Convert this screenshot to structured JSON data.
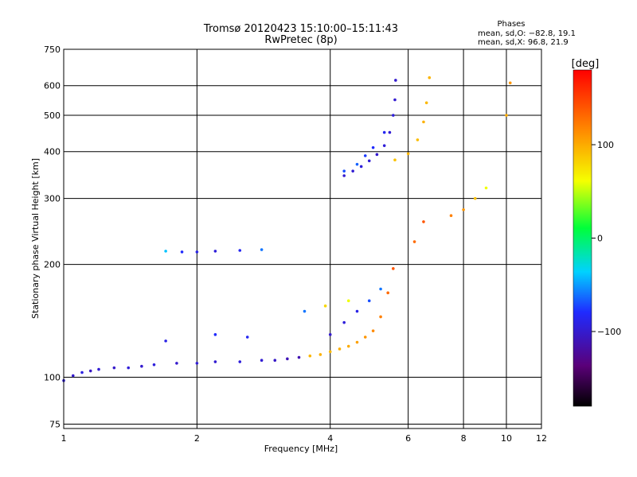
{
  "chart_data": {
    "type": "scatter",
    "title": "Tromsø 20120423 15:10:00–15:11:43",
    "subtitle": "RwPretec (8p)",
    "phase_summary": {
      "title": "Phases",
      "line_o": "mean, sd,O: −82.8, 19.1",
      "line_x": "mean, sd,X:  96.8, 21.9"
    },
    "xlabel": "Frequency [MHz]",
    "ylabel": "Stationary phase Virtual Height [km]",
    "x_scale": "log",
    "y_scale": "log",
    "xlim": [
      1,
      12
    ],
    "ylim": [
      73,
      750
    ],
    "x_ticks": [
      1,
      2,
      4,
      6,
      8,
      10,
      12
    ],
    "x_tick_labels": [
      "1",
      "2",
      "4",
      "6",
      "8",
      "10",
      "12"
    ],
    "y_ticks": [
      75,
      100,
      200,
      300,
      400,
      500,
      600,
      750
    ],
    "y_tick_labels": [
      "75",
      "100",
      "200",
      "300",
      "400",
      "500",
      "600",
      "750"
    ],
    "grid": true,
    "colorbar": {
      "label": "[deg]",
      "min": -180,
      "max": 180,
      "ticks": [
        100,
        0,
        -100
      ],
      "tick_labels": [
        "100",
        "0",
        "−100"
      ],
      "colormap": "rainbow (black → purple → blue → cyan → green → yellow → orange → red)"
    },
    "series": [
      {
        "points": [
          {
            "x": 1.0,
            "y": 98,
            "phase": -95
          },
          {
            "x": 1.05,
            "y": 101,
            "phase": -100
          },
          {
            "x": 1.1,
            "y": 103,
            "phase": -92
          },
          {
            "x": 1.15,
            "y": 104,
            "phase": -105
          },
          {
            "x": 1.2,
            "y": 105,
            "phase": -98
          },
          {
            "x": 1.3,
            "y": 106,
            "phase": -102
          },
          {
            "x": 1.4,
            "y": 106,
            "phase": -96
          },
          {
            "x": 1.5,
            "y": 107,
            "phase": -100
          },
          {
            "x": 1.6,
            "y": 108,
            "phase": -94
          },
          {
            "x": 1.8,
            "y": 109,
            "phase": -101
          },
          {
            "x": 2.0,
            "y": 109,
            "phase": -97
          },
          {
            "x": 2.2,
            "y": 110,
            "phase": -99
          },
          {
            "x": 2.5,
            "y": 110,
            "phase": -95
          },
          {
            "x": 2.8,
            "y": 111,
            "phase": -98
          },
          {
            "x": 3.0,
            "y": 111,
            "phase": -103
          },
          {
            "x": 3.2,
            "y": 112,
            "phase": -110
          },
          {
            "x": 3.4,
            "y": 113,
            "phase": -112
          },
          {
            "x": 3.6,
            "y": 114,
            "phase": 95
          },
          {
            "x": 3.8,
            "y": 115,
            "phase": 97
          },
          {
            "x": 4.0,
            "y": 117,
            "phase": 93
          },
          {
            "x": 4.2,
            "y": 119,
            "phase": 98
          },
          {
            "x": 4.4,
            "y": 121,
            "phase": 100
          },
          {
            "x": 4.6,
            "y": 124,
            "phase": 105
          },
          {
            "x": 4.8,
            "y": 128,
            "phase": 110
          },
          {
            "x": 5.0,
            "y": 133,
            "phase": 115
          },
          {
            "x": 5.2,
            "y": 145,
            "phase": 120
          },
          {
            "x": 5.4,
            "y": 168,
            "phase": 130
          },
          {
            "x": 5.55,
            "y": 195,
            "phase": 140
          },
          {
            "x": 4.0,
            "y": 130,
            "phase": -100
          },
          {
            "x": 4.3,
            "y": 140,
            "phase": -95
          },
          {
            "x": 4.6,
            "y": 150,
            "phase": -90
          },
          {
            "x": 4.9,
            "y": 160,
            "phase": -70
          },
          {
            "x": 5.2,
            "y": 172,
            "phase": -60
          },
          {
            "x": 3.9,
            "y": 155,
            "phase": 80
          },
          {
            "x": 4.4,
            "y": 160,
            "phase": 60
          },
          {
            "x": 1.7,
            "y": 125,
            "phase": -90
          },
          {
            "x": 2.2,
            "y": 130,
            "phase": -80
          },
          {
            "x": 2.6,
            "y": 128,
            "phase": -85
          },
          {
            "x": 3.5,
            "y": 150,
            "phase": -60
          },
          {
            "x": 1.7,
            "y": 217,
            "phase": -40
          },
          {
            "x": 1.85,
            "y": 216,
            "phase": -80
          },
          {
            "x": 2.0,
            "y": 216,
            "phase": -90
          },
          {
            "x": 2.2,
            "y": 217,
            "phase": -95
          },
          {
            "x": 2.5,
            "y": 218,
            "phase": -85
          },
          {
            "x": 2.8,
            "y": 219,
            "phase": -60
          },
          {
            "x": 4.3,
            "y": 345,
            "phase": -100
          },
          {
            "x": 4.5,
            "y": 355,
            "phase": -98
          },
          {
            "x": 4.7,
            "y": 365,
            "phase": -95
          },
          {
            "x": 4.9,
            "y": 378,
            "phase": -97
          },
          {
            "x": 5.1,
            "y": 393,
            "phase": -100
          },
          {
            "x": 5.3,
            "y": 415,
            "phase": -96
          },
          {
            "x": 5.45,
            "y": 450,
            "phase": -98
          },
          {
            "x": 5.55,
            "y": 500,
            "phase": -95
          },
          {
            "x": 5.6,
            "y": 550,
            "phase": -99
          },
          {
            "x": 5.62,
            "y": 620,
            "phase": -100
          },
          {
            "x": 4.3,
            "y": 355,
            "phase": -70
          },
          {
            "x": 4.6,
            "y": 370,
            "phase": -65
          },
          {
            "x": 4.8,
            "y": 390,
            "phase": -75
          },
          {
            "x": 5.0,
            "y": 410,
            "phase": -80
          },
          {
            "x": 5.3,
            "y": 450,
            "phase": -85
          },
          {
            "x": 5.6,
            "y": 380,
            "phase": 90
          },
          {
            "x": 6.0,
            "y": 395,
            "phase": 95
          },
          {
            "x": 6.3,
            "y": 430,
            "phase": 92
          },
          {
            "x": 6.5,
            "y": 480,
            "phase": 97
          },
          {
            "x": 6.6,
            "y": 540,
            "phase": 94
          },
          {
            "x": 6.7,
            "y": 630,
            "phase": 96
          },
          {
            "x": 6.2,
            "y": 230,
            "phase": 130
          },
          {
            "x": 6.5,
            "y": 260,
            "phase": 140
          },
          {
            "x": 7.5,
            "y": 270,
            "phase": 120
          },
          {
            "x": 8.0,
            "y": 280,
            "phase": 110
          },
          {
            "x": 8.5,
            "y": 300,
            "phase": 90
          },
          {
            "x": 9.0,
            "y": 320,
            "phase": 60
          },
          {
            "x": 10.2,
            "y": 610,
            "phase": 110
          },
          {
            "x": 10.0,
            "y": 500,
            "phase": 100
          }
        ]
      }
    ]
  }
}
